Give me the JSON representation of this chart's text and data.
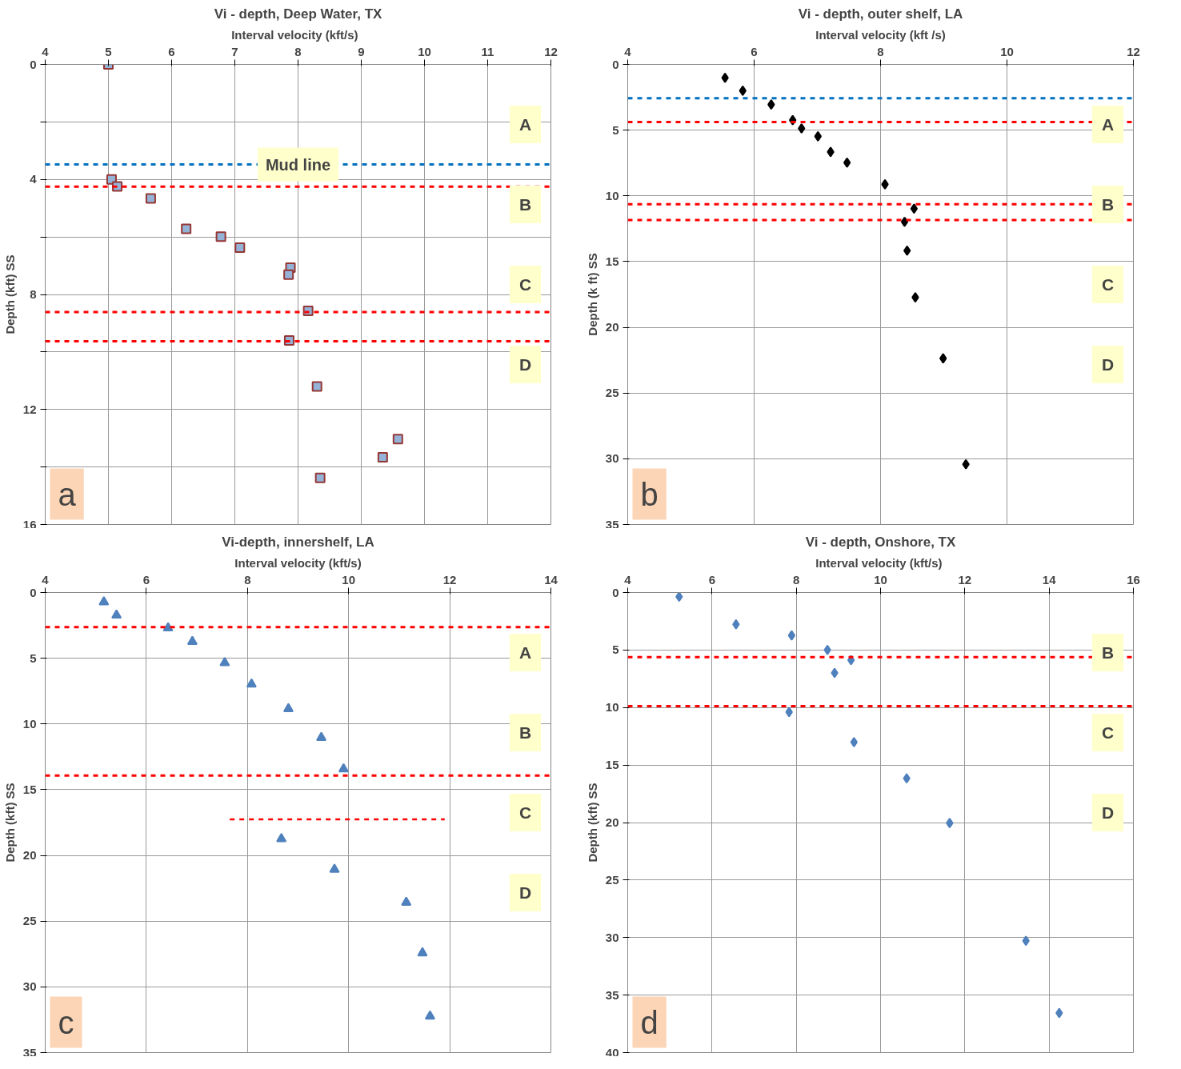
{
  "chart_data": [
    {
      "type": "scatter",
      "title": "Vi - depth, Deep Water, TX",
      "xlabel": "Interval velocity   (kft/s)",
      "ylabel": "Depth (kft) SS",
      "xlim": [
        4,
        12
      ],
      "xticks": [
        4,
        5,
        6,
        7,
        8,
        9,
        10,
        11,
        12
      ],
      "ylim": [
        16,
        0
      ],
      "yticks": [
        0,
        {
          "value": 2,
          "label": null
        },
        4,
        {
          "value": 6,
          "label": null
        },
        8,
        {
          "value": 10,
          "label": null
        },
        12,
        {
          "value": 14,
          "label": null
        },
        16
      ],
      "grid": true,
      "marker": "square",
      "series": [
        {
          "color": "#953735",
          "x": [
            5.0,
            5.05,
            5.14,
            5.67,
            6.23,
            6.78,
            7.08,
            7.88,
            7.85,
            8.16,
            7.86,
            8.3,
            9.58,
            9.34,
            8.35
          ],
          "values": [
            0.0,
            4.0,
            4.24,
            4.66,
            5.72,
            5.99,
            6.37,
            7.07,
            7.31,
            8.57,
            9.6,
            11.2,
            13.03,
            13.66,
            14.38
          ]
        }
      ],
      "ref_lines": [
        {
          "axis": "y",
          "value": 3.48,
          "label": "Mud line",
          "color": "#0070c0",
          "line_style": "dashed"
        },
        {
          "axis": "y",
          "value": 4.25,
          "label": null,
          "color": "#ff0000",
          "line_style": "dashed"
        },
        {
          "axis": "y",
          "value": 8.61,
          "label": null,
          "color": "#ff0000",
          "line_style": "dashed"
        },
        {
          "axis": "y",
          "value": 9.63,
          "label": null,
          "color": "#ff0000",
          "line_style": "dashed"
        }
      ],
      "annotations": [
        "A",
        "B",
        "C",
        "D",
        "a"
      ]
    },
    {
      "type": "scatter",
      "title": "Vi - depth, outer shelf, LA",
      "xlabel": "Interval velocity (kft /s)",
      "ylabel": "Depth (k ft) SS",
      "xlim": [
        4,
        12
      ],
      "xticks": [
        4,
        6,
        8,
        10,
        12
      ],
      "ylim": [
        35,
        0
      ],
      "yticks": [
        0,
        5,
        10,
        15,
        20,
        25,
        30,
        35
      ],
      "grid": true,
      "marker": "diamond",
      "series": [
        {
          "color": "#000000",
          "x": [
            5.54,
            5.82,
            6.27,
            6.61,
            6.75,
            7.01,
            7.21,
            7.47,
            8.07,
            8.53,
            8.38,
            8.42,
            8.55,
            8.99,
            9.35
          ],
          "values": [
            1.02,
            2.0,
            3.05,
            4.24,
            4.87,
            5.47,
            6.66,
            7.47,
            9.12,
            10.97,
            11.98,
            14.17,
            17.72,
            22.36,
            30.42
          ]
        }
      ],
      "ref_lines": [
        {
          "axis": "y",
          "value": 2.57,
          "label": null,
          "color": "#0070c0",
          "line_style": "dashed"
        },
        {
          "axis": "y",
          "value": 4.39,
          "label": null,
          "color": "#ff0000",
          "line_style": "dashed"
        },
        {
          "axis": "y",
          "value": 10.64,
          "label": null,
          "color": "#ff0000",
          "line_style": "dashed"
        },
        {
          "axis": "y",
          "value": 11.84,
          "label": null,
          "color": "#ff0000",
          "line_style": "dashed"
        }
      ],
      "annotations": [
        "A",
        "B",
        "C",
        "D",
        "b"
      ]
    },
    {
      "type": "scatter",
      "title": "Vi-depth, innershelf, LA",
      "xlabel": "Interval velocity (kft/s)",
      "ylabel": "Depth (kft) SS",
      "xlim": [
        4,
        14
      ],
      "xticks": [
        4,
        6,
        8,
        10,
        12,
        14
      ],
      "ylim": [
        35,
        0
      ],
      "yticks": [
        0,
        5,
        10,
        15,
        20,
        25,
        30,
        35
      ],
      "grid": true,
      "series": [
        {
          "marker": "triangle",
          "color": "#4f81bd",
          "x": [
            5.16,
            5.41,
            6.43,
            6.91,
            7.55,
            8.08,
            8.81,
            9.46,
            9.9,
            8.67,
            9.72,
            11.14,
            11.46,
            11.61
          ],
          "values": [
            0.72,
            1.73,
            2.7,
            3.74,
            5.35,
            6.98,
            8.84,
            11.04,
            13.43,
            18.74,
            21.07,
            23.58,
            27.42,
            32.23
          ]
        },
        {
          "type": "line",
          "color": "#ff0000",
          "line_style": "dashed",
          "x": [
            7.65,
            11.9
          ],
          "values": [
            17.26,
            17.26
          ]
        }
      ],
      "ref_lines": [
        {
          "axis": "y",
          "value": 2.64,
          "label": null,
          "color": "#ff0000",
          "line_style": "dashed"
        },
        {
          "axis": "y",
          "value": 13.93,
          "label": null,
          "color": "#ff0000",
          "line_style": "dashed"
        }
      ],
      "annotations": [
        "A",
        "B",
        "C",
        "D",
        "c"
      ]
    },
    {
      "type": "scatter",
      "title": "Vi - depth, Onshore, TX",
      "xlabel": "Interval velocity  (kft/s)",
      "ylabel": "Depth (kft) SS",
      "xlim": [
        4,
        16
      ],
      "xticks": [
        4,
        6,
        8,
        10,
        12,
        14,
        16
      ],
      "ylim": [
        40,
        0
      ],
      "yticks": [
        0,
        5,
        10,
        15,
        20,
        25,
        30,
        35,
        40
      ],
      "grid": true,
      "marker": "diamond",
      "series": [
        {
          "color": "#4f81bd",
          "x": [
            5.22,
            6.57,
            7.89,
            8.74,
            9.3,
            8.91,
            7.83,
            9.37,
            10.62,
            11.64,
            13.45,
            14.24
          ],
          "values": [
            0.37,
            2.77,
            3.73,
            4.99,
            5.88,
            6.99,
            10.39,
            13.01,
            16.16,
            20.04,
            30.28,
            36.56
          ]
        }
      ],
      "ref_lines": [
        {
          "axis": "y",
          "value": 5.62,
          "label": null,
          "color": "#ff0000",
          "line_style": "dashed"
        },
        {
          "axis": "y",
          "value": 9.87,
          "label": null,
          "color": "#ff0000",
          "line_style": "dashed"
        }
      ],
      "annotations": [
        "B",
        "C",
        "D",
        "d"
      ]
    }
  ]
}
